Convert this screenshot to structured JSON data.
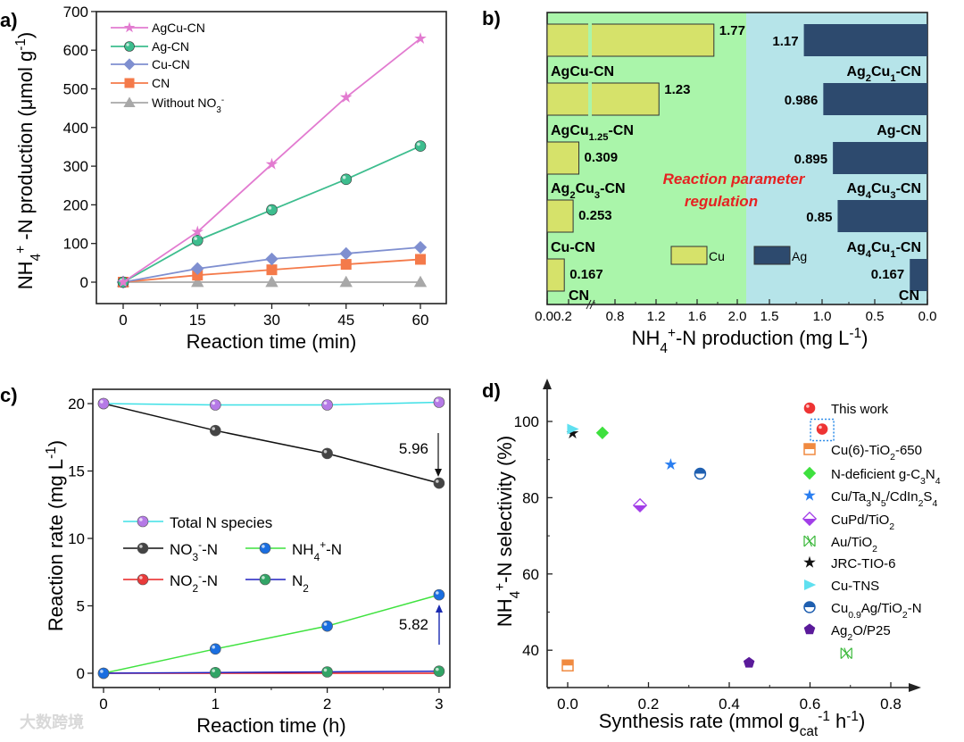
{
  "watermark": "大数跨境",
  "chart_data": [
    {
      "panel_label": "a)",
      "type": "line",
      "xlabel": "Reaction time (min)",
      "ylabel": "NH_{4}^{+} -N production (μmol g^{-1})",
      "x": [
        0,
        15,
        30,
        45,
        60
      ],
      "xlim": [
        -5,
        64
      ],
      "ylim": [
        -55,
        700
      ],
      "xticks": [
        "0",
        "15",
        "30",
        "45",
        "60"
      ],
      "yticks": [
        "0",
        "100",
        "200",
        "300",
        "400",
        "500",
        "600",
        "700"
      ],
      "legend_position": "top-left",
      "series": [
        {
          "name": "AgCu-CN",
          "values": [
            0,
            130,
            305,
            478,
            630
          ],
          "marker": "star",
          "color": "#e27bd0"
        },
        {
          "name": "Ag-CN",
          "values": [
            0,
            108,
            187,
            266,
            352
          ],
          "marker": "circle",
          "color": "#3dbd8e"
        },
        {
          "name": "Cu-CN",
          "values": [
            0,
            35,
            60,
            74,
            90
          ],
          "marker": "diamond",
          "color": "#7f8fd0"
        },
        {
          "name": "CN",
          "values": [
            0,
            18,
            32,
            46,
            59
          ],
          "marker": "square",
          "color": "#f47a4a"
        },
        {
          "name": "Without NO_{3}^{-}",
          "values": [
            0,
            0,
            0,
            0,
            0
          ],
          "marker": "triangle",
          "color": "#a8a8a8"
        }
      ]
    },
    {
      "panel_label": "b)",
      "type": "bar",
      "orientation": "horizontal-butterfly",
      "xlabel": "NH_{4}^{+}-N production (mg L^{-1})",
      "annotation": [
        "Reaction parameter",
        "regulation"
      ],
      "left_xticks": [
        "0.00.2",
        "0.8",
        "1.2",
        "1.6",
        "2.0"
      ],
      "right_xticks": [
        "1.5",
        "1.0",
        "0.5",
        "0.0"
      ],
      "legend": [
        {
          "name": "Cu",
          "color": "#d6e26a"
        },
        {
          "name": "Ag",
          "color": "#2d4a6e"
        }
      ],
      "left_series": {
        "name": "Cu",
        "categories": [
          "AgCu-CN",
          "AgCu_{1.25}-CN",
          "Ag_{2}Cu_{3}-CN",
          "Cu-CN",
          "CN"
        ],
        "values": [
          1.77,
          1.23,
          0.309,
          0.253,
          0.167
        ],
        "labels": [
          "1.77",
          "1.23",
          "0.309",
          "0.253",
          "0.167"
        ]
      },
      "right_series": {
        "name": "Ag",
        "categories": [
          "Ag_{2}Cu_{1}-CN",
          "Ag-CN",
          "Ag_{4}Cu_{3}-CN",
          "Ag_{4}Cu_{1}-CN",
          "CN"
        ],
        "values": [
          1.17,
          0.986,
          0.895,
          0.85,
          0.167
        ],
        "labels": [
          "1.17",
          "0.986",
          "0.895",
          "0.85",
          "0.167"
        ]
      },
      "colors": {
        "left_bg": "#aaf5aa",
        "right_bg": "#b6e4e9",
        "annotation": "#e62222"
      }
    },
    {
      "panel_label": "c)",
      "type": "line",
      "xlabel": "Reaction time (h)",
      "ylabel": "Reaction rate (mg L^{-1})",
      "x": [
        0,
        1,
        2,
        3
      ],
      "xlim": [
        -0.1,
        3.1
      ],
      "ylim": [
        -1,
        21
      ],
      "xticks": [
        "0",
        "1",
        "2",
        "3"
      ],
      "yticks": [
        "0",
        "5",
        "10",
        "15",
        "20"
      ],
      "legend_position": "center-left",
      "series": [
        {
          "name": "Total N species",
          "values": [
            20,
            19.9,
            19.9,
            20.1
          ],
          "line": "#3ee0e6",
          "marker_color": "#b57ae6"
        },
        {
          "name": "NO_{3}^{-}-N",
          "values": [
            20,
            18,
            16.3,
            14.1
          ],
          "line": "#111111",
          "marker_color": "#444444"
        },
        {
          "name": "NH_{4}^{+}-N",
          "values": [
            0,
            1.8,
            3.5,
            5.82
          ],
          "line": "#3fe23f",
          "marker_color": "#1a6ee0"
        },
        {
          "name": "NO_{2}^{-}-N",
          "values": [
            0,
            0,
            0,
            0
          ],
          "line": "#e82020",
          "marker_color": "#e83a3a"
        },
        {
          "name": "N_{2}",
          "values": [
            0,
            0.05,
            0.1,
            0.15
          ],
          "line": "#2020c0",
          "marker_color": "#32a466"
        }
      ],
      "annotations": [
        {
          "text": "5.96",
          "at_x": 3,
          "direction": "down"
        },
        {
          "text": "5.82",
          "at_x": 3,
          "direction": "up"
        }
      ]
    },
    {
      "panel_label": "d)",
      "type": "scatter",
      "xlabel": "Synthesis rate (mmol g_{cat}^{-1} h^{-1})",
      "ylabel": "NH_{4}^{+}-N selectivity (%)",
      "xlim": [
        -0.05,
        0.87
      ],
      "ylim": [
        30,
        106
      ],
      "xticks": [
        "0.0",
        "0.2",
        "0.4",
        "0.6",
        "0.8"
      ],
      "yticks": [
        "40",
        "60",
        "80",
        "100"
      ],
      "legend_position": "right",
      "series": [
        {
          "name": "This work",
          "x": 0.63,
          "y": 98,
          "marker": "sphere",
          "color": "#ee3333",
          "highlight": true
        },
        {
          "name": "Cu(6)-TiO_{2}-650",
          "x": 0.0,
          "y": 36,
          "marker": "half-square",
          "color": "#f08a40"
        },
        {
          "name": "N-deficient g-C_{3}N_{4}",
          "x": 0.086,
          "y": 97,
          "marker": "diamond",
          "color": "#3ee03e"
        },
        {
          "name": "Cu/Ta_{3}N_{5}/CdIn_{2}S_{4}",
          "x": 0.255,
          "y": 88.7,
          "marker": "star",
          "color": "#2a7ef0"
        },
        {
          "name": "CuPd/TiO_{2}",
          "x": 0.179,
          "y": 78,
          "marker": "half-diamond",
          "color": "#a23ee8"
        },
        {
          "name": "Au/TiO_{2}",
          "x": 0.69,
          "y": 39.2,
          "marker": "cross-box",
          "color": "#3ab83a"
        },
        {
          "name": "JRC-TIO-6",
          "x": 0.012,
          "y": 96.9,
          "marker": "star",
          "color": "#111111"
        },
        {
          "name": "Cu-TNS",
          "x": 0.012,
          "y": 98,
          "marker": "triangle-right",
          "color": "#5fe0f0"
        },
        {
          "name": "Cu_{0.9}Ag/TiO_{2}-N",
          "x": 0.328,
          "y": 86.3,
          "marker": "half-circle",
          "color": "#1f5fb0"
        },
        {
          "name": "Ag_{2}O/P25",
          "x": 0.449,
          "y": 36.7,
          "marker": "pentagon",
          "color": "#5a1a9a"
        }
      ]
    }
  ]
}
